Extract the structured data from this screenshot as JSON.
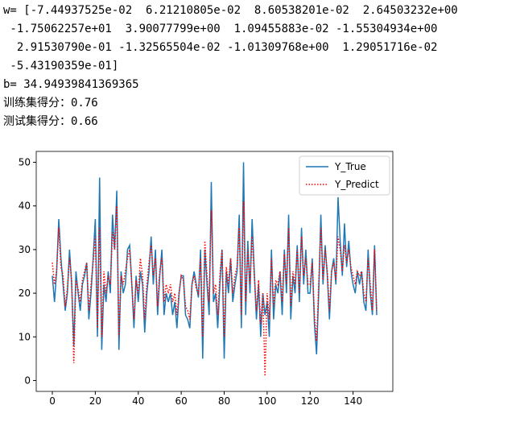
{
  "output_lines": [
    "w= [-7.44937525e-02  6.21210805e-02  8.60538201e-02  2.64503232e+00",
    " -1.75062257e+01  3.90077799e+00  1.09455883e-02 -1.55304934e+00",
    "  2.91530790e-01 -1.32565504e-02 -1.01309768e+00  1.29051716e-02",
    " -5.43190359e-01]",
    "b= 34.94939841369365",
    "训练集得分：0.76",
    "测试集得分：0.66"
  ],
  "chart_data": {
    "type": "line",
    "x": [
      0,
      1,
      2,
      3,
      4,
      5,
      6,
      7,
      8,
      9,
      10,
      11,
      12,
      13,
      14,
      15,
      16,
      17,
      18,
      19,
      20,
      21,
      22,
      23,
      24,
      25,
      26,
      27,
      28,
      29,
      30,
      31,
      32,
      33,
      34,
      35,
      36,
      37,
      38,
      39,
      40,
      41,
      42,
      43,
      44,
      45,
      46,
      47,
      48,
      49,
      50,
      51,
      52,
      53,
      54,
      55,
      56,
      57,
      58,
      59,
      60,
      61,
      62,
      63,
      64,
      65,
      66,
      67,
      68,
      69,
      70,
      71,
      72,
      73,
      74,
      75,
      76,
      77,
      78,
      79,
      80,
      81,
      82,
      83,
      84,
      85,
      86,
      87,
      88,
      89,
      90,
      91,
      92,
      93,
      94,
      95,
      96,
      97,
      98,
      99,
      100,
      101,
      102,
      103,
      104,
      105,
      106,
      107,
      108,
      109,
      110,
      111,
      112,
      113,
      114,
      115,
      116,
      117,
      118,
      119,
      120,
      121,
      122,
      123,
      124,
      125,
      126,
      127,
      128,
      129,
      130,
      131,
      132,
      133,
      134,
      135,
      136,
      137,
      138,
      139,
      140,
      141,
      142,
      143,
      144,
      145,
      146,
      147,
      148,
      149,
      150,
      151
    ],
    "series": [
      {
        "name": "Y_True",
        "color": "#1f77b4",
        "style": "solid",
        "values": [
          24,
          18,
          25,
          37,
          28,
          22,
          16,
          20,
          30,
          22,
          8,
          25,
          20,
          16,
          22,
          24,
          27,
          14,
          20,
          28,
          37,
          10,
          46.5,
          7,
          22,
          18,
          25,
          20,
          38,
          30,
          43.5,
          7,
          25,
          20,
          22,
          30,
          31,
          22,
          12,
          24,
          18,
          25,
          22,
          11,
          20,
          25,
          33,
          22,
          30,
          15,
          24,
          30,
          15,
          20,
          18,
          20,
          15,
          18,
          12,
          20,
          24,
          24,
          15,
          14,
          12,
          22,
          25,
          22,
          19,
          30,
          5,
          30,
          22,
          15,
          45.5,
          18,
          20,
          12,
          22,
          30,
          5,
          25,
          20,
          28,
          18,
          22,
          25,
          38,
          12,
          50,
          15,
          32,
          20,
          37,
          25,
          14,
          22,
          10,
          20,
          15,
          18,
          10,
          30,
          14,
          22,
          20,
          25,
          15,
          30,
          20,
          38,
          14,
          24,
          20,
          31,
          18,
          35,
          22,
          30,
          20,
          20,
          28,
          13,
          6,
          20,
          38,
          22,
          31,
          24,
          14,
          25,
          28,
          22,
          42,
          32,
          24,
          36,
          26,
          32,
          25,
          22,
          20,
          25,
          22,
          25,
          18,
          16,
          30,
          20,
          15,
          31,
          15
        ]
      },
      {
        "name": "Y_Predict",
        "color": "#ff0000",
        "style": "dotted",
        "values": [
          27,
          22,
          25,
          35,
          26,
          24,
          17,
          21,
          28,
          23,
          4,
          23,
          21,
          18,
          23,
          25,
          27,
          16,
          22,
          27,
          33,
          12,
          35,
          10,
          25,
          20,
          24,
          22,
          34,
          30,
          40,
          10,
          24,
          22,
          25,
          28,
          30,
          22,
          14,
          23,
          20,
          28,
          24,
          14,
          22,
          27,
          31,
          24,
          28,
          17,
          25,
          28,
          18,
          22,
          20,
          22,
          18,
          20,
          15,
          20,
          24,
          23,
          17,
          16,
          14,
          22,
          24,
          21,
          20,
          28,
          10,
          32,
          24,
          18,
          39,
          20,
          22,
          15,
          24,
          30,
          10,
          26,
          22,
          28,
          20,
          24,
          26,
          35,
          15,
          41,
          18,
          30,
          22,
          33,
          24,
          16,
          23,
          13,
          20,
          1,
          20,
          14,
          28,
          17,
          23,
          22,
          25,
          18,
          29,
          22,
          35,
          17,
          25,
          22,
          30,
          20,
          33,
          24,
          28,
          22,
          22,
          27,
          15,
          9,
          22,
          35,
          23,
          30,
          25,
          16,
          25,
          27,
          23,
          33,
          30,
          25,
          31,
          27,
          30,
          26,
          24,
          22,
          25,
          24,
          25,
          20,
          18,
          28,
          22,
          16,
          30,
          16
        ]
      }
    ],
    "xlim": [
      -7.5,
      158.5
    ],
    "xticks": [
      0,
      20,
      40,
      60,
      80,
      100,
      120,
      140
    ],
    "ylim": [
      -2.5,
      52.5
    ],
    "yticks": [
      0,
      10,
      20,
      30,
      40,
      50
    ],
    "legend": "upper right"
  }
}
